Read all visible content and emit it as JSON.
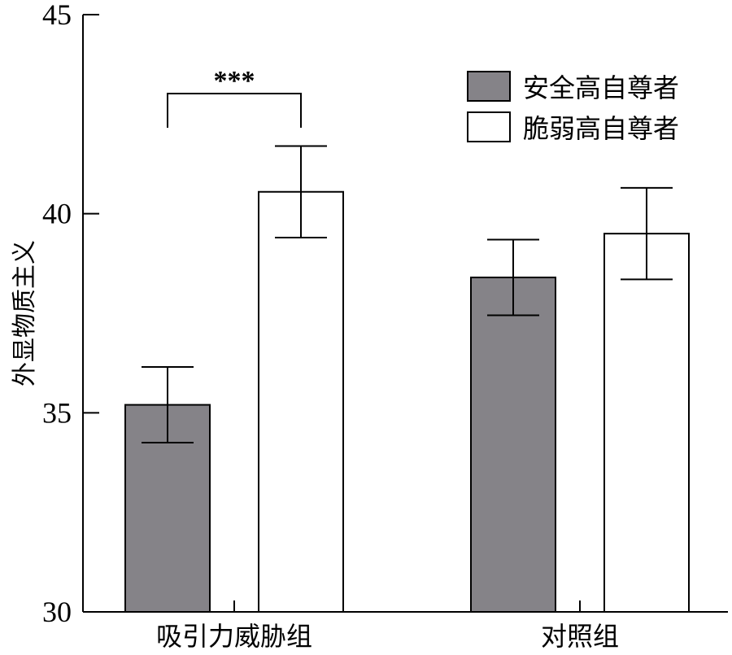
{
  "chart_data": {
    "type": "bar",
    "ylabel": "外显物质主义",
    "ylim": [
      30,
      45
    ],
    "yticks": [
      30,
      35,
      40,
      45
    ],
    "categories": [
      "吸引力威胁组",
      "对照组"
    ],
    "series": [
      {
        "name": "安全高自尊者",
        "color": "#858388",
        "values": [
          35.2,
          38.4
        ],
        "errors": [
          0.95,
          0.95
        ]
      },
      {
        "name": "脆弱高自尊者",
        "color": "#ffffff",
        "values": [
          40.55,
          39.5
        ],
        "errors": [
          1.15,
          1.15
        ]
      }
    ],
    "significance": [
      {
        "category": "吸引力威胁组",
        "label": "***"
      }
    ],
    "legend_position": "top-right"
  }
}
